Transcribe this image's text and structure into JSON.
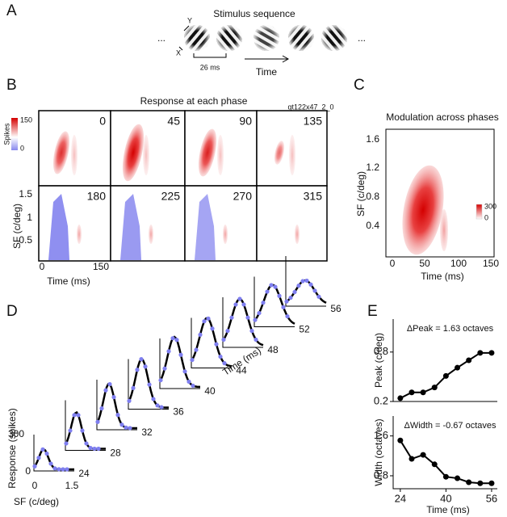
{
  "figure": {
    "a": {
      "label": "A",
      "title": "Stimulus sequence",
      "axis_y": "Y",
      "axis_x": "X",
      "ellipsis": "...",
      "interval": "26 ms",
      "time": "Time"
    },
    "b": {
      "label": "B",
      "title": "Response at each phase",
      "cell_id": "qt122x47_2_0",
      "colorbar_label": "Spikes",
      "colorbar_ticks": [
        "150",
        "0"
      ],
      "phases": [
        "0",
        "45",
        "90",
        "135",
        "180",
        "225",
        "270",
        "315"
      ],
      "yticks": [
        "1.5",
        "1",
        "0.5"
      ],
      "xticks": [
        "0",
        "150"
      ],
      "ylabel": "SF (c/deg)",
      "xlabel": "Time (ms)"
    },
    "c": {
      "label": "C",
      "title": "Modulation across phases",
      "colorbar_ticks": [
        "300",
        "0"
      ],
      "yticks": [
        "1.6",
        "1.2",
        "0.8",
        "0.4"
      ],
      "xticks": [
        "0",
        "50",
        "100",
        "150"
      ],
      "ylabel": "SF (c/deg)",
      "xlabel": "Time (ms)"
    },
    "d": {
      "label": "D",
      "ylabel": "Response (spikes)",
      "xlabel": "SF (c/deg)",
      "time_label": "Time (ms)",
      "yticks": [
        "300",
        "0"
      ],
      "xticks": [
        "0",
        "1.5"
      ],
      "times": [
        "24",
        "28",
        "32",
        "36",
        "40",
        "44",
        "48",
        "52",
        "56"
      ]
    },
    "e": {
      "label": "E",
      "xlabel": "Time (ms)"
    }
  },
  "chart_data": [
    {
      "type": "line",
      "annotation": "ΔPeak = 1.63 octaves",
      "ylabel": "Peak (c/deg)",
      "x": [
        24,
        28,
        32,
        36,
        40,
        44,
        48,
        52,
        56
      ],
      "values": [
        0.24,
        0.31,
        0.31,
        0.37,
        0.51,
        0.61,
        0.7,
        0.79,
        0.79
      ],
      "color": "#000000",
      "xlim": [
        21.5,
        58
      ],
      "ylim": [
        0.2,
        1.2
      ],
      "yticks": [
        0.2,
        0.8
      ]
    },
    {
      "type": "line",
      "annotation": "ΔWidth = -0.67 octaves",
      "ylabel": "Width (octaves)",
      "x": [
        24,
        28,
        32,
        36,
        40,
        44,
        48,
        52,
        56
      ],
      "values": [
        1.51,
        1.14,
        1.22,
        1.03,
        0.78,
        0.75,
        0.67,
        0.65,
        0.65
      ],
      "color": "#000000",
      "xlim": [
        21.5,
        58
      ],
      "ylim": [
        0.54,
        2.0
      ],
      "yticks": [
        0.8,
        1.6
      ],
      "xticks": [
        24,
        40,
        56
      ]
    }
  ]
}
